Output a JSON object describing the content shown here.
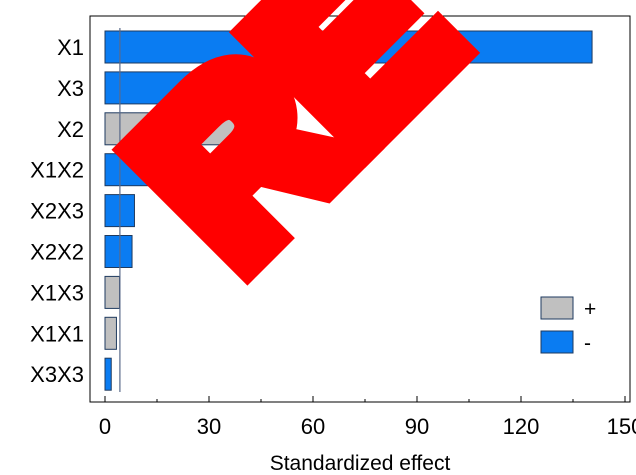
{
  "chart_data": {
    "type": "bar",
    "orientation": "horizontal",
    "title": "",
    "xlabel": "Standardized effect",
    "ylabel": "",
    "xlim": [
      0,
      150
    ],
    "xticks": [
      0,
      30,
      60,
      90,
      120,
      150
    ],
    "xtick_labels": [
      "0",
      "30",
      "60",
      "90",
      "120",
      "150"
    ],
    "categories": [
      "X1",
      "X3",
      "X2",
      "X1X2",
      "X2X3",
      "X2X2",
      "X1X3",
      "X1X1",
      "X3X3"
    ],
    "values": [
      140.5,
      52,
      38,
      13,
      8.5,
      7.8,
      4.2,
      3.3,
      1.8
    ],
    "signs": [
      "-",
      "-",
      "+",
      "-",
      "-",
      "-",
      "+",
      "+",
      "-"
    ],
    "reference_line": 4.3,
    "grid": false,
    "legend": {
      "placement": "bottom-right",
      "entries": [
        {
          "label": "+",
          "color": "#c0c0c0"
        },
        {
          "label": "-",
          "color": "#0a7cf2"
        }
      ]
    },
    "colors": {
      "positive": "#c0c0c0",
      "negative": "#0a7cf2",
      "bar_stroke": "#1e3a5f",
      "reference_line": "#5a6a8a"
    },
    "watermark_text": "RE",
    "watermark_color": "#ff0000"
  }
}
